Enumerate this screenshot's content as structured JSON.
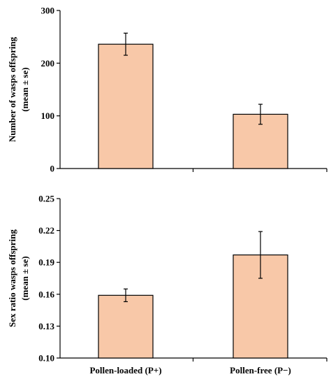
{
  "colors": {
    "bar_fill": "#f8c8a8",
    "axis": "#000000"
  },
  "chart_data": [
    {
      "type": "bar",
      "categories": [
        "Pollen-loaded (P+)",
        "Pollen-free (P−)"
      ],
      "values": [
        236,
        103
      ],
      "errors": [
        21,
        19
      ],
      "ylabel_line1": "Number of wasps offspring",
      "ylabel_line2": "(mean ± se)",
      "ylim": [
        0,
        300
      ],
      "yticks": [
        0,
        100,
        200,
        300
      ],
      "ytick_labels": [
        "0",
        "100",
        "200",
        "300"
      ],
      "show_category_labels": false
    },
    {
      "type": "bar",
      "categories": [
        "Pollen-loaded (P+)",
        "Pollen-free (P−)"
      ],
      "values": [
        0.159,
        0.197
      ],
      "errors": [
        0.006,
        0.022
      ],
      "ylabel_line1": "Sex ratio  wasps offspring",
      "ylabel_line2": "(mean ± se)",
      "ylim": [
        0.1,
        0.25
      ],
      "yticks": [
        0.1,
        0.13,
        0.16,
        0.19,
        0.22,
        0.25
      ],
      "ytick_labels": [
        "0.10",
        "0.13",
        "0.16",
        "0.19",
        "0.22",
        "0.25"
      ],
      "show_category_labels": true
    }
  ]
}
